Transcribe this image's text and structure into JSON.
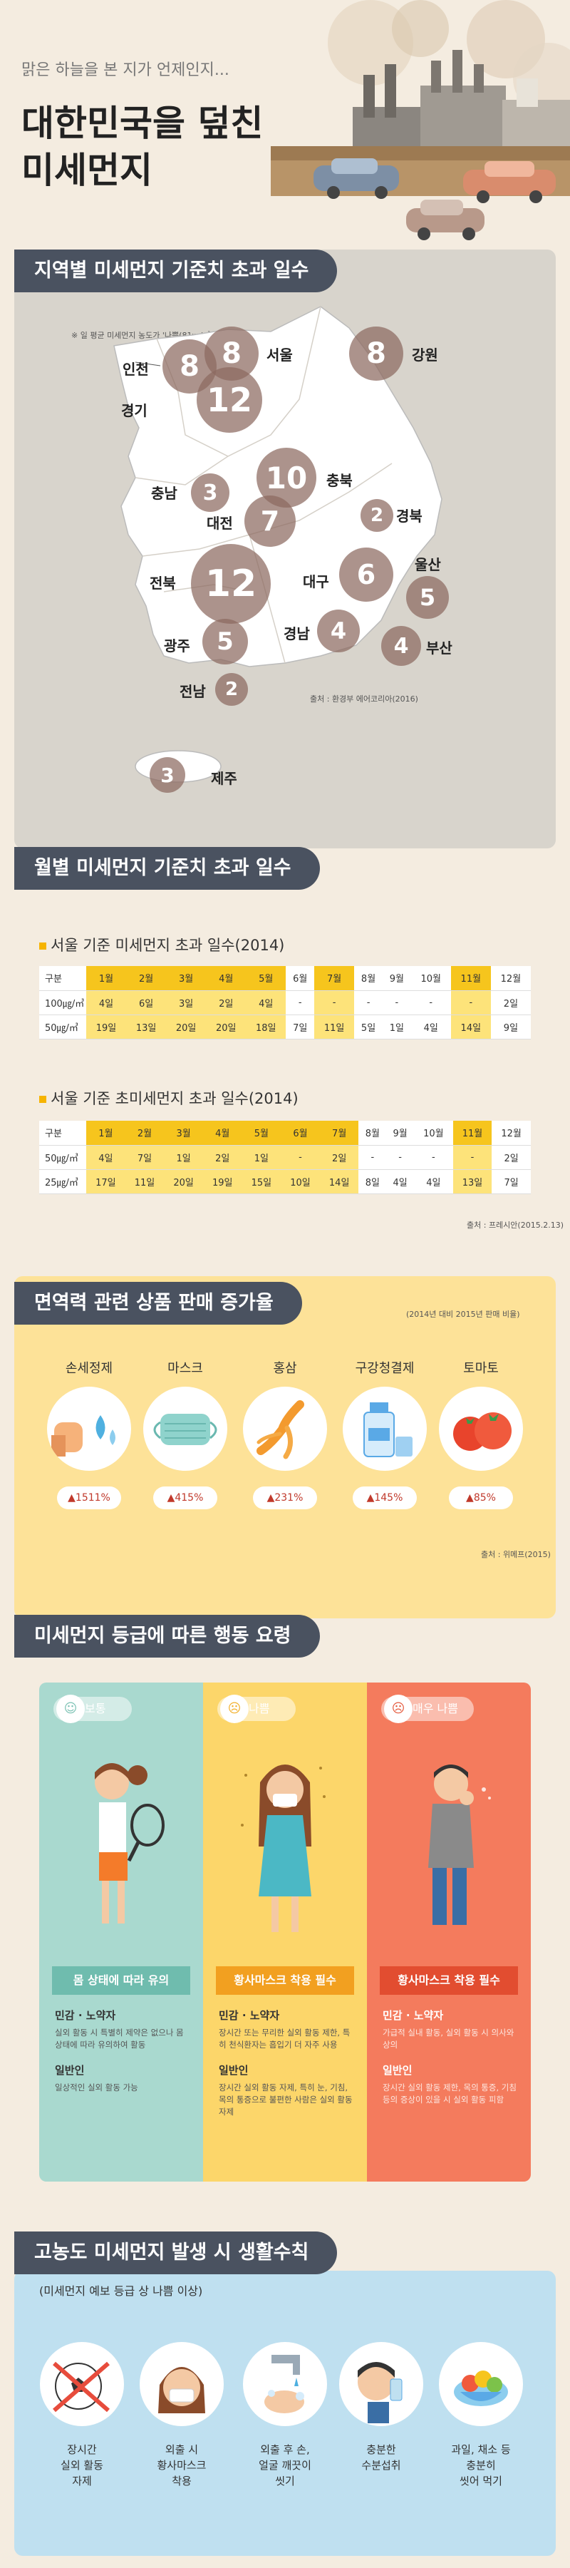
{
  "header": {
    "kicker": "맑은 하늘을 본 지가 언제인지...",
    "title_line1": "대한민국을 덮친",
    "title_line2": "미세먼지"
  },
  "map": {
    "section_title": "지역별 미세먼지 기준치 초과 일수",
    "note": "※ 일 평균 미세먼지 농도가 '나쁨(81㎍/㎥ 이상)' 수준 초과 일수 (2016.3.1~4.10)",
    "source": "출처 : 환경부 에어코리아(2016)",
    "regions": [
      {
        "name": "인천",
        "days": "8"
      },
      {
        "name": "서울",
        "days": "8"
      },
      {
        "name": "강원",
        "days": "8"
      },
      {
        "name": "경기",
        "days": "12"
      },
      {
        "name": "충북",
        "days": "10"
      },
      {
        "name": "충남",
        "days": "3"
      },
      {
        "name": "대전",
        "days": "7"
      },
      {
        "name": "경북",
        "days": "2"
      },
      {
        "name": "전북",
        "days": "12"
      },
      {
        "name": "대구",
        "days": "6"
      },
      {
        "name": "울산",
        "days": "5"
      },
      {
        "name": "광주",
        "days": "5"
      },
      {
        "name": "경남",
        "days": "4"
      },
      {
        "name": "부산",
        "days": "4"
      },
      {
        "name": "전남",
        "days": "2"
      },
      {
        "name": "제주",
        "days": "3"
      }
    ]
  },
  "monthly": {
    "section_title": "월별 미세먼지 기준치 초과 일수",
    "table1_title": "서울 기준 미세먼지 초과 일수(2014)",
    "table2_title": "서울 기준 초미세먼지 초과 일수(2014)",
    "header": [
      "구분",
      "1월",
      "2월",
      "3월",
      "4월",
      "5월",
      "6월",
      "7월",
      "8월",
      "9월",
      "10월",
      "11월",
      "12월"
    ],
    "table1": [
      [
        "100㎍/㎥",
        "4일",
        "6일",
        "3일",
        "2일",
        "4일",
        "-",
        "-",
        "-",
        "-",
        "-",
        "-",
        "2일"
      ],
      [
        "50㎍/㎥",
        "19일",
        "13일",
        "20일",
        "20일",
        "18일",
        "7일",
        "11일",
        "5일",
        "1일",
        "4일",
        "14일",
        "9일"
      ]
    ],
    "table2": [
      [
        "50㎍/㎥",
        "4일",
        "7일",
        "1일",
        "2일",
        "1일",
        "-",
        "2일",
        "-",
        "-",
        "-",
        "-",
        "2일"
      ],
      [
        "25㎍/㎥",
        "17일",
        "11일",
        "20일",
        "19일",
        "15일",
        "10일",
        "14일",
        "8일",
        "4일",
        "4일",
        "13일",
        "7일"
      ]
    ],
    "source": "출처 : 프레시안(2015.2.13)"
  },
  "products": {
    "section_title": "면역력 관련 상품 판매 증가율",
    "period": "(2014년 대비 2015년 판매 비율)",
    "items": [
      {
        "name": "손세정제",
        "rate": "▲1511%",
        "icon": "hand-wash-icon"
      },
      {
        "name": "마스크",
        "rate": "▲415%",
        "icon": "mask-icon"
      },
      {
        "name": "홍삼",
        "rate": "▲231%",
        "icon": "ginseng-icon"
      },
      {
        "name": "구강청결제",
        "rate": "▲145%",
        "icon": "mouthwash-icon"
      },
      {
        "name": "토마토",
        "rate": "▲85%",
        "icon": "tomato-icon"
      }
    ],
    "source": "출처 : 위메프(2015)"
  },
  "guide": {
    "section_title": "미세먼지 등급에 따른 행동 요령",
    "grades": [
      {
        "grade": "보통",
        "face": "☺",
        "rule": "몸 상태에 따라 유의",
        "g1_title": "민감 · 노약자",
        "g1_text": "실외 활동 시 특별히 제약은 없으나 몸 상태에 따라 유의하여 활동",
        "g2_title": "일반인",
        "g2_text": "일상적인 실외 활동 가능"
      },
      {
        "grade": "나쁨",
        "face": "☹",
        "rule": "황사마스크 착용 필수",
        "g1_title": "민감 · 노약자",
        "g1_text": "장시간 또는 무리한 실외 활동 제한, 특히 천식환자는 흡입기 더 자주 사용",
        "g2_title": "일반인",
        "g2_text": "장시간 실외 활동 자제, 특히 눈, 기침, 목의 통증으로 불편한 사람은 실외 활동 자제"
      },
      {
        "grade": "매우 나쁨",
        "face": "☹",
        "rule": "황사마스크 착용 필수",
        "g1_title": "민감 · 노약자",
        "g1_text": "가급적 실내 활동, 실외 활동 시 의사와 상의",
        "g2_title": "일반인",
        "g2_text": "장시간 실외 활동 제한, 목의 통증, 기침 등의 증상이 있을 시 실외 활동 피함"
      }
    ]
  },
  "tips": {
    "section_title": "고농도 미세먼지 발생 시 생활수칙",
    "subtitle": "(미세먼지 예보 등급 상 나쁨 이상)",
    "items": [
      {
        "label": "장시간\n실외 활동\n자제",
        "icon": "soccer-ball-icon"
      },
      {
        "label": "외출 시\n황사마스크\n착용",
        "icon": "mask-wearer-icon"
      },
      {
        "label": "외출 후 손,\n얼굴 깨끗이\n씻기",
        "icon": "hand-washing-icon"
      },
      {
        "label": "충분한\n수분섭취",
        "icon": "drinking-water-icon"
      },
      {
        "label": "과일, 채소 등\n충분히\n씻어 먹기",
        "icon": "fruit-bowl-icon"
      }
    ]
  }
}
